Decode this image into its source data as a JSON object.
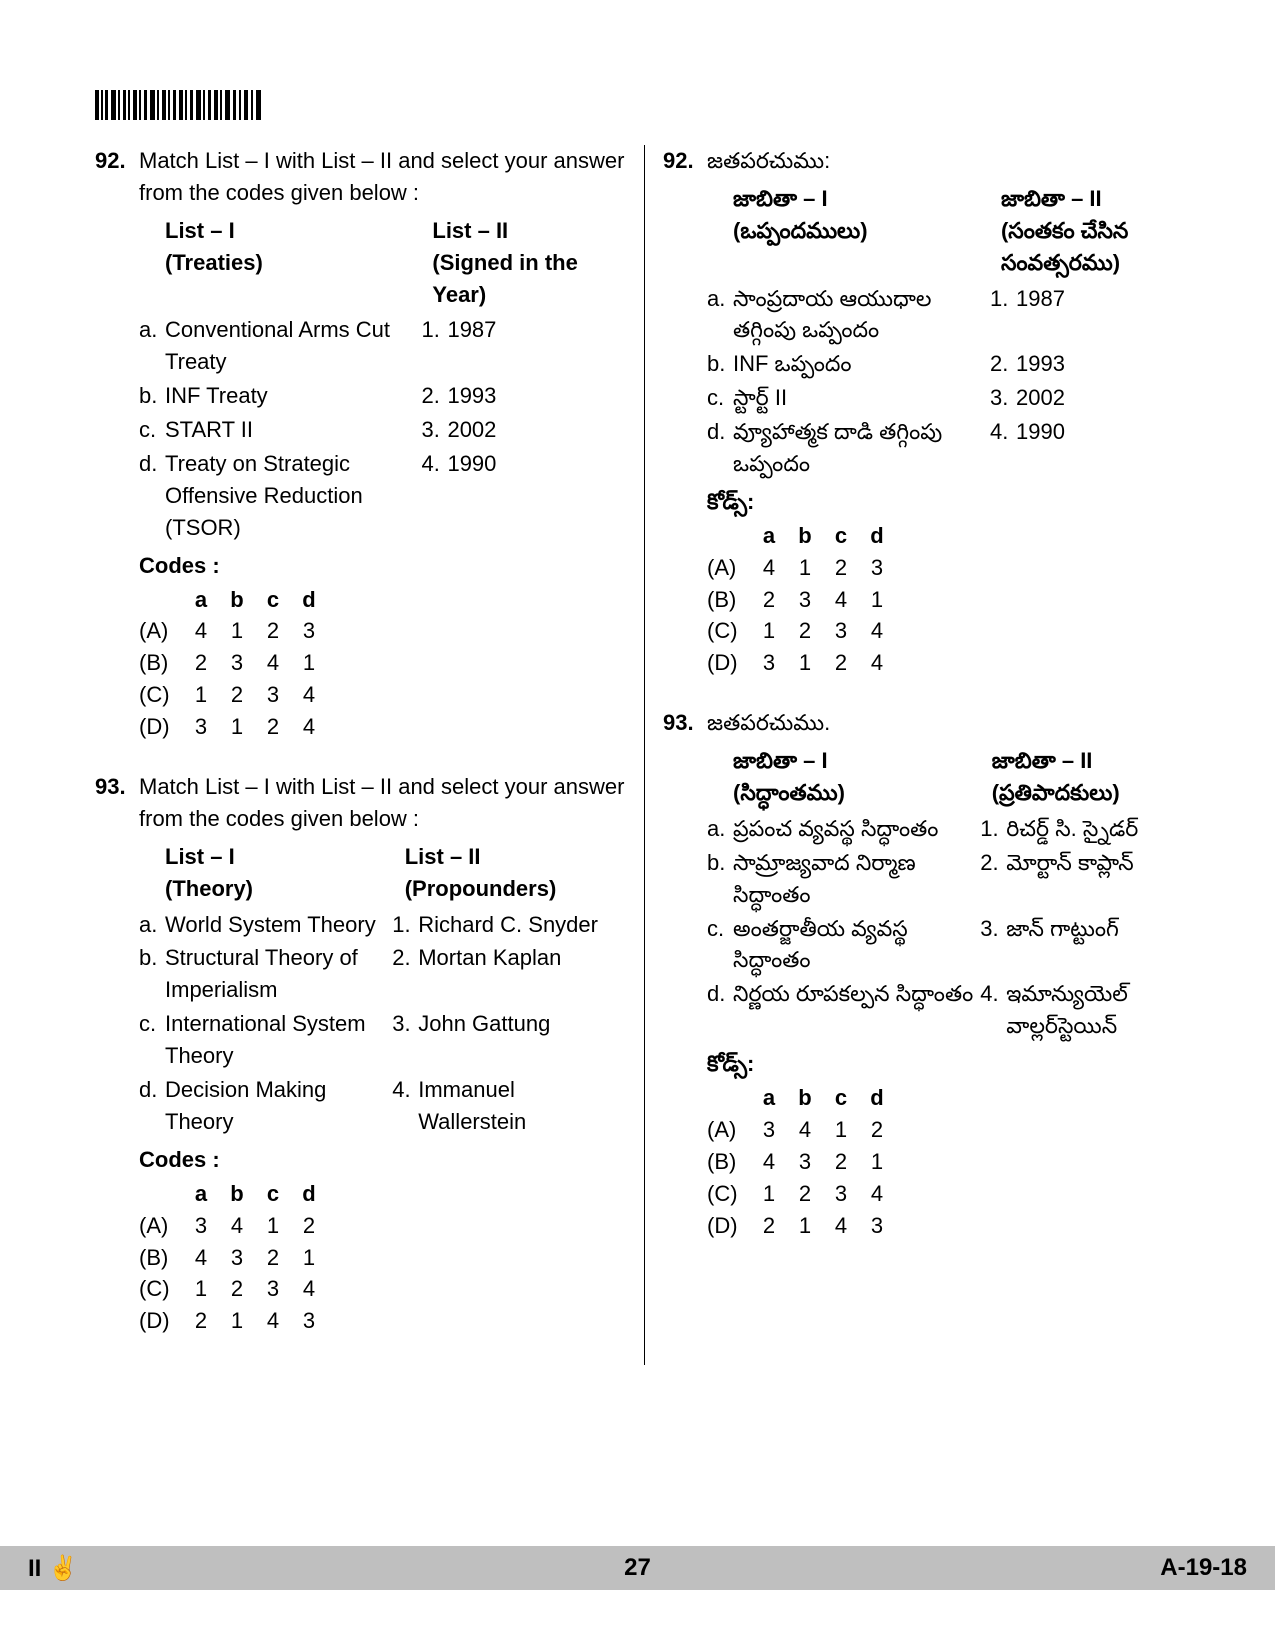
{
  "page_number": "27",
  "paper_code": "A-19-18",
  "footer_left": "II ✌",
  "barcode": {
    "width": 170,
    "height": 30
  },
  "q92": {
    "number": "92.",
    "stem": "Match List – I with List – II and select your answer from the codes given below :",
    "list1_header_a": "List – I",
    "list1_header_b": "(Treaties)",
    "list2_header_a": "List – II",
    "list2_header_b": "(Signed in the Year)",
    "rows": [
      {
        "l": "a.",
        "ltext": "Conventional Arms Cut Treaty",
        "r": "1.",
        "rtext": "1987"
      },
      {
        "l": "b.",
        "ltext": "INF Treaty",
        "r": "2.",
        "rtext": "1993"
      },
      {
        "l": "c.",
        "ltext": "START II",
        "r": "3.",
        "rtext": "2002"
      },
      {
        "l": "d.",
        "ltext": "Treaty on Strategic Offensive Reduction (TSOR)",
        "r": "4.",
        "rtext": "1990"
      }
    ],
    "codes_label": "Codes :",
    "codes_head": [
      "a",
      "b",
      "c",
      "d"
    ],
    "codes": [
      {
        "opt": "(A)",
        "vals": [
          "4",
          "1",
          "2",
          "3"
        ]
      },
      {
        "opt": "(B)",
        "vals": [
          "2",
          "3",
          "4",
          "1"
        ]
      },
      {
        "opt": "(C)",
        "vals": [
          "1",
          "2",
          "3",
          "4"
        ]
      },
      {
        "opt": "(D)",
        "vals": [
          "3",
          "1",
          "2",
          "4"
        ]
      }
    ]
  },
  "q93": {
    "number": "93.",
    "stem": "Match List – I with List – II and select your answer from the codes given below :",
    "list1_header_a": "List – I",
    "list1_header_b": "(Theory)",
    "list2_header_a": "List – II",
    "list2_header_b": "(Propounders)",
    "rows": [
      {
        "l": "a.",
        "ltext": "World System Theory",
        "r": "1.",
        "rtext": "Richard C. Snyder"
      },
      {
        "l": "b.",
        "ltext": "Structural Theory of Imperialism",
        "r": "2.",
        "rtext": "Mortan Kaplan"
      },
      {
        "l": "c.",
        "ltext": "International System Theory",
        "r": "3.",
        "rtext": "John Gattung"
      },
      {
        "l": "d.",
        "ltext": "Decision Making Theory",
        "r": "4.",
        "rtext": "Immanuel Wallerstein"
      }
    ],
    "codes_label": "Codes :",
    "codes_head": [
      "a",
      "b",
      "c",
      "d"
    ],
    "codes": [
      {
        "opt": "(A)",
        "vals": [
          "3",
          "4",
          "1",
          "2"
        ]
      },
      {
        "opt": "(B)",
        "vals": [
          "4",
          "3",
          "2",
          "1"
        ]
      },
      {
        "opt": "(C)",
        "vals": [
          "1",
          "2",
          "3",
          "4"
        ]
      },
      {
        "opt": "(D)",
        "vals": [
          "2",
          "1",
          "4",
          "3"
        ]
      }
    ]
  },
  "q92t": {
    "number": "92.",
    "stem": "జతపరచుము:",
    "list1_header_a": "జాబితా – I",
    "list1_header_b": "(ఒప్పందములు)",
    "list2_header_a": "జాబితా – II",
    "list2_header_b": "(సంతకం చేసిన సంవత్సరము)",
    "rows": [
      {
        "l": "a.",
        "ltext": "సాంప్రదాయ ఆయుధాల తగ్గింపు ఒప్పందం",
        "r": "1.",
        "rtext": "1987"
      },
      {
        "l": "b.",
        "ltext": "INF ఒప్పందం",
        "r": "2.",
        "rtext": "1993"
      },
      {
        "l": "c.",
        "ltext": "స్టార్ట్ II",
        "r": "3.",
        "rtext": "2002"
      },
      {
        "l": "d.",
        "ltext": "వ్యూహాత్మక దాడి తగ్గింపు ఒప్పందం",
        "r": "4.",
        "rtext": "1990"
      }
    ],
    "codes_label": "కోడ్స్:",
    "codes_head": [
      "a",
      "b",
      "c",
      "d"
    ],
    "codes": [
      {
        "opt": "(A)",
        "vals": [
          "4",
          "1",
          "2",
          "3"
        ]
      },
      {
        "opt": "(B)",
        "vals": [
          "2",
          "3",
          "4",
          "1"
        ]
      },
      {
        "opt": "(C)",
        "vals": [
          "1",
          "2",
          "3",
          "4"
        ]
      },
      {
        "opt": "(D)",
        "vals": [
          "3",
          "1",
          "2",
          "4"
        ]
      }
    ]
  },
  "q93t": {
    "number": "93.",
    "stem": "జతపరచుము.",
    "list1_header_a": "జాబితా – I",
    "list1_header_b": "(సిద్ధాంతము)",
    "list2_header_a": "జాబితా – II",
    "list2_header_b": "(ప్రతిపాదకులు)",
    "rows": [
      {
        "l": "a.",
        "ltext": "ప్రపంచ వ్యవస్థ సిద్ధాంతం",
        "r": "1.",
        "rtext": "రిచర్డ్ సి. స్నైడర్"
      },
      {
        "l": "b.",
        "ltext": "సామ్రాజ్యవాద నిర్మాణ సిద్ధాంతం",
        "r": "2.",
        "rtext": "మోర్టాన్ కాప్లాన్"
      },
      {
        "l": "c.",
        "ltext": "అంతర్జాతీయ వ్యవస్థ సిద్ధాంతం",
        "r": "3.",
        "rtext": "జాన్ గాట్టుంగ్"
      },
      {
        "l": "d.",
        "ltext": "నిర్ణయ రూపకల్పన సిద్ధాంతం",
        "r": "4.",
        "rtext": "ఇమాన్యుయెల్ వాల్లర్‌స్టెయిన్"
      }
    ],
    "codes_label": "కోడ్స్:",
    "codes_head": [
      "a",
      "b",
      "c",
      "d"
    ],
    "codes": [
      {
        "opt": "(A)",
        "vals": [
          "3",
          "4",
          "1",
          "2"
        ]
      },
      {
        "opt": "(B)",
        "vals": [
          "4",
          "3",
          "2",
          "1"
        ]
      },
      {
        "opt": "(C)",
        "vals": [
          "1",
          "2",
          "3",
          "4"
        ]
      },
      {
        "opt": "(D)",
        "vals": [
          "2",
          "1",
          "4",
          "3"
        ]
      }
    ]
  }
}
